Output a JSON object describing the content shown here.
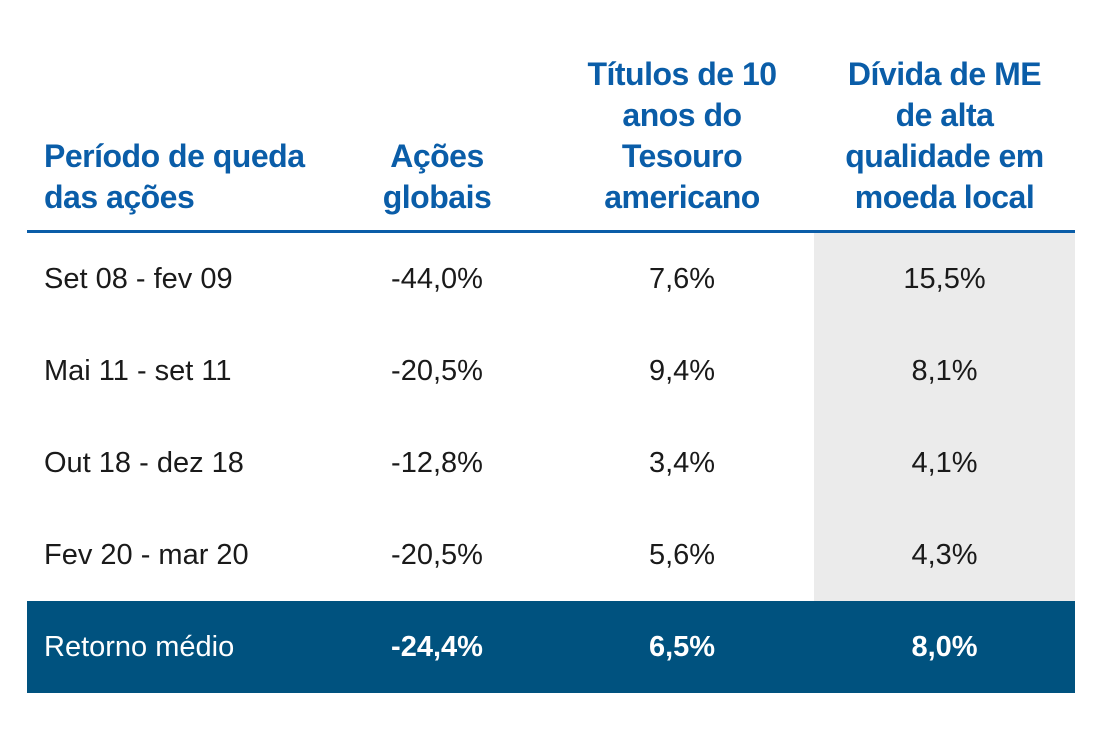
{
  "chart_data": {
    "type": "table",
    "columns": [
      [
        "Período de queda",
        "das ações"
      ],
      [
        "Ações",
        "globais"
      ],
      [
        "Títulos de 10",
        "anos do",
        "Tesouro",
        "americano"
      ],
      [
        "Dívida de ME",
        "de alta",
        "qualidade em",
        "moeda local"
      ]
    ],
    "rows": [
      [
        "Set 08 - fev 09",
        "-44,0%",
        "7,6%",
        "15,5%"
      ],
      [
        "Mai 11 - set 11",
        "-20,5%",
        "9,4%",
        "8,1%"
      ],
      [
        "Out 18 - dez 18",
        "-12,8%",
        "3,4%",
        "4,1%"
      ],
      [
        "Fev 20 - mar 20",
        "-20,5%",
        "5,6%",
        "4,3%"
      ]
    ],
    "values": {
      "Ações globais": [
        -44.0,
        -20.5,
        -12.8,
        -20.5
      ],
      "Títulos de 10 anos do Tesouro americano": [
        7.6,
        9.4,
        3.4,
        5.6
      ],
      "Dívida de ME de alta qualidade em moeda local": [
        15.5,
        8.1,
        4.1,
        4.3
      ]
    },
    "summary_row": [
      "Retorno médio",
      "-24,4%",
      "6,5%",
      "8,0%"
    ],
    "highlighted_column": 3,
    "colors": {
      "header_text": "#0a5da8",
      "header_rule": "#0a5da8",
      "highlight_column_bg": "#ebebeb",
      "summary_row_bg": "#00527f",
      "summary_row_text": "#ffffff",
      "body_text": "#1a1a1a"
    }
  }
}
